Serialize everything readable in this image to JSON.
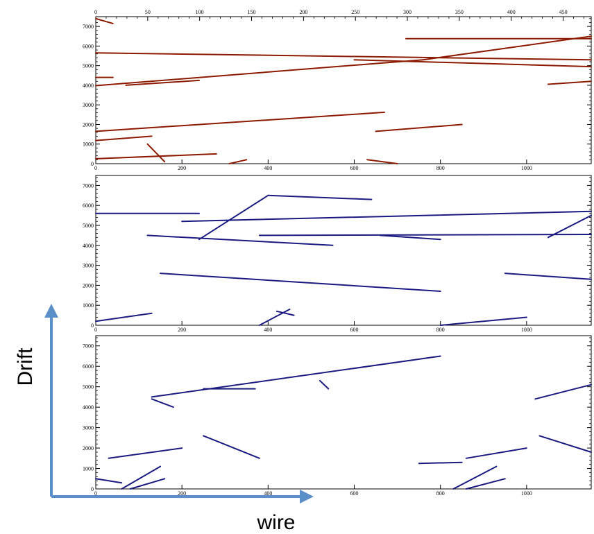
{
  "chart_data": [
    {
      "type": "scatter",
      "name": "panel-top",
      "x_ticks_top": [
        "0",
        "50",
        "100",
        "150",
        "200",
        "250",
        "300",
        "350",
        "400",
        "450"
      ],
      "x_ticks_bottom": [
        "0",
        "200",
        "400",
        "600",
        "800",
        "1000"
      ],
      "y_ticks": [
        "0",
        "1000",
        "2000",
        "3000",
        "4000",
        "5000",
        "6000",
        "7000"
      ],
      "x_top_range": [
        0,
        477
      ],
      "x_bottom_range": [
        0,
        1150
      ],
      "ylim": [
        0,
        7500
      ],
      "track_color": "#8b1a00",
      "tracks": [
        [
          [
            0,
            5650
          ],
          [
            1150,
            5300
          ]
        ],
        [
          [
            0,
            3980
          ],
          [
            760,
            5300
          ]
        ],
        [
          [
            760,
            5300
          ],
          [
            1150,
            6500
          ]
        ],
        [
          [
            0,
            1650
          ],
          [
            670,
            2620
          ]
        ],
        [
          [
            0,
            1180
          ],
          [
            130,
            1400
          ]
        ],
        [
          [
            0,
            250
          ],
          [
            280,
            500
          ]
        ],
        [
          [
            720,
            6380
          ],
          [
            1150,
            6380
          ]
        ],
        [
          [
            600,
            5300
          ],
          [
            1150,
            4950
          ]
        ],
        [
          [
            650,
            1650
          ],
          [
            850,
            2000
          ]
        ],
        [
          [
            0,
            7400
          ],
          [
            40,
            7150
          ]
        ],
        [
          [
            120,
            1000
          ],
          [
            160,
            100
          ]
        ],
        [
          [
            1050,
            4050
          ],
          [
            1150,
            4200
          ]
        ],
        [
          [
            0,
            4400
          ],
          [
            40,
            4400
          ]
        ],
        [
          [
            350,
            200
          ],
          [
            310,
            0
          ]
        ],
        [
          [
            630,
            200
          ],
          [
            700,
            0
          ]
        ],
        [
          [
            70,
            4000
          ],
          [
            240,
            4250
          ]
        ]
      ]
    },
    {
      "type": "scatter",
      "name": "panel-middle",
      "x_ticks": [
        "0",
        "200",
        "400",
        "600",
        "800",
        "1000"
      ],
      "y_ticks": [
        "0",
        "1000",
        "2000",
        "3000",
        "4000",
        "5000",
        "6000",
        "7000"
      ],
      "xlim": [
        0,
        1150
      ],
      "ylim": [
        0,
        7500
      ],
      "track_color": "#1a1a80",
      "tracks": [
        [
          [
            0,
            5600
          ],
          [
            240,
            5600
          ]
        ],
        [
          [
            200,
            5200
          ],
          [
            1150,
            5700
          ]
        ],
        [
          [
            240,
            4300
          ],
          [
            400,
            6500
          ]
        ],
        [
          [
            400,
            6500
          ],
          [
            640,
            6300
          ]
        ],
        [
          [
            120,
            4500
          ],
          [
            550,
            4000
          ]
        ],
        [
          [
            380,
            4500
          ],
          [
            1150,
            4550
          ]
        ],
        [
          [
            150,
            2600
          ],
          [
            800,
            1700
          ]
        ],
        [
          [
            0,
            200
          ],
          [
            130,
            600
          ]
        ],
        [
          [
            420,
            700
          ],
          [
            460,
            500
          ]
        ],
        [
          [
            380,
            0
          ],
          [
            450,
            800
          ]
        ],
        [
          [
            950,
            2600
          ],
          [
            1150,
            2300
          ]
        ],
        [
          [
            800,
            0
          ],
          [
            1000,
            400
          ]
        ],
        [
          [
            660,
            4500
          ],
          [
            800,
            4300
          ]
        ],
        [
          [
            1050,
            4400
          ],
          [
            1150,
            5500
          ]
        ]
      ]
    },
    {
      "type": "scatter",
      "name": "panel-bottom",
      "x_ticks": [
        "0",
        "200",
        "400",
        "600",
        "800",
        "1000"
      ],
      "y_ticks": [
        "0",
        "1000",
        "2000",
        "3000",
        "4000",
        "5000",
        "6000",
        "7000"
      ],
      "xlim": [
        0,
        1150
      ],
      "ylim": [
        0,
        7500
      ],
      "track_color": "#1a1a80",
      "tracks": [
        [
          [
            130,
            4500
          ],
          [
            800,
            6500
          ]
        ],
        [
          [
            250,
            4900
          ],
          [
            370,
            4900
          ]
        ],
        [
          [
            130,
            4400
          ],
          [
            180,
            4000
          ]
        ],
        [
          [
            30,
            1500
          ],
          [
            200,
            2000
          ]
        ],
        [
          [
            250,
            2600
          ],
          [
            380,
            1500
          ]
        ],
        [
          [
            0,
            500
          ],
          [
            60,
            300
          ]
        ],
        [
          [
            60,
            0
          ],
          [
            150,
            1100
          ]
        ],
        [
          [
            80,
            0
          ],
          [
            160,
            500
          ]
        ],
        [
          [
            750,
            1250
          ],
          [
            850,
            1300
          ]
        ],
        [
          [
            1020,
            4400
          ],
          [
            1150,
            5100
          ]
        ],
        [
          [
            860,
            1500
          ],
          [
            1000,
            2000
          ]
        ],
        [
          [
            1030,
            2600
          ],
          [
            1150,
            1800
          ]
        ],
        [
          [
            830,
            0
          ],
          [
            930,
            1100
          ]
        ],
        [
          [
            860,
            0
          ],
          [
            950,
            500
          ]
        ],
        [
          [
            520,
            5300
          ],
          [
            540,
            4900
          ]
        ]
      ]
    }
  ],
  "axes_annotation": {
    "vertical_label": "Drift",
    "horizontal_label": "wire",
    "arrow_color": "#5b8fc7"
  }
}
